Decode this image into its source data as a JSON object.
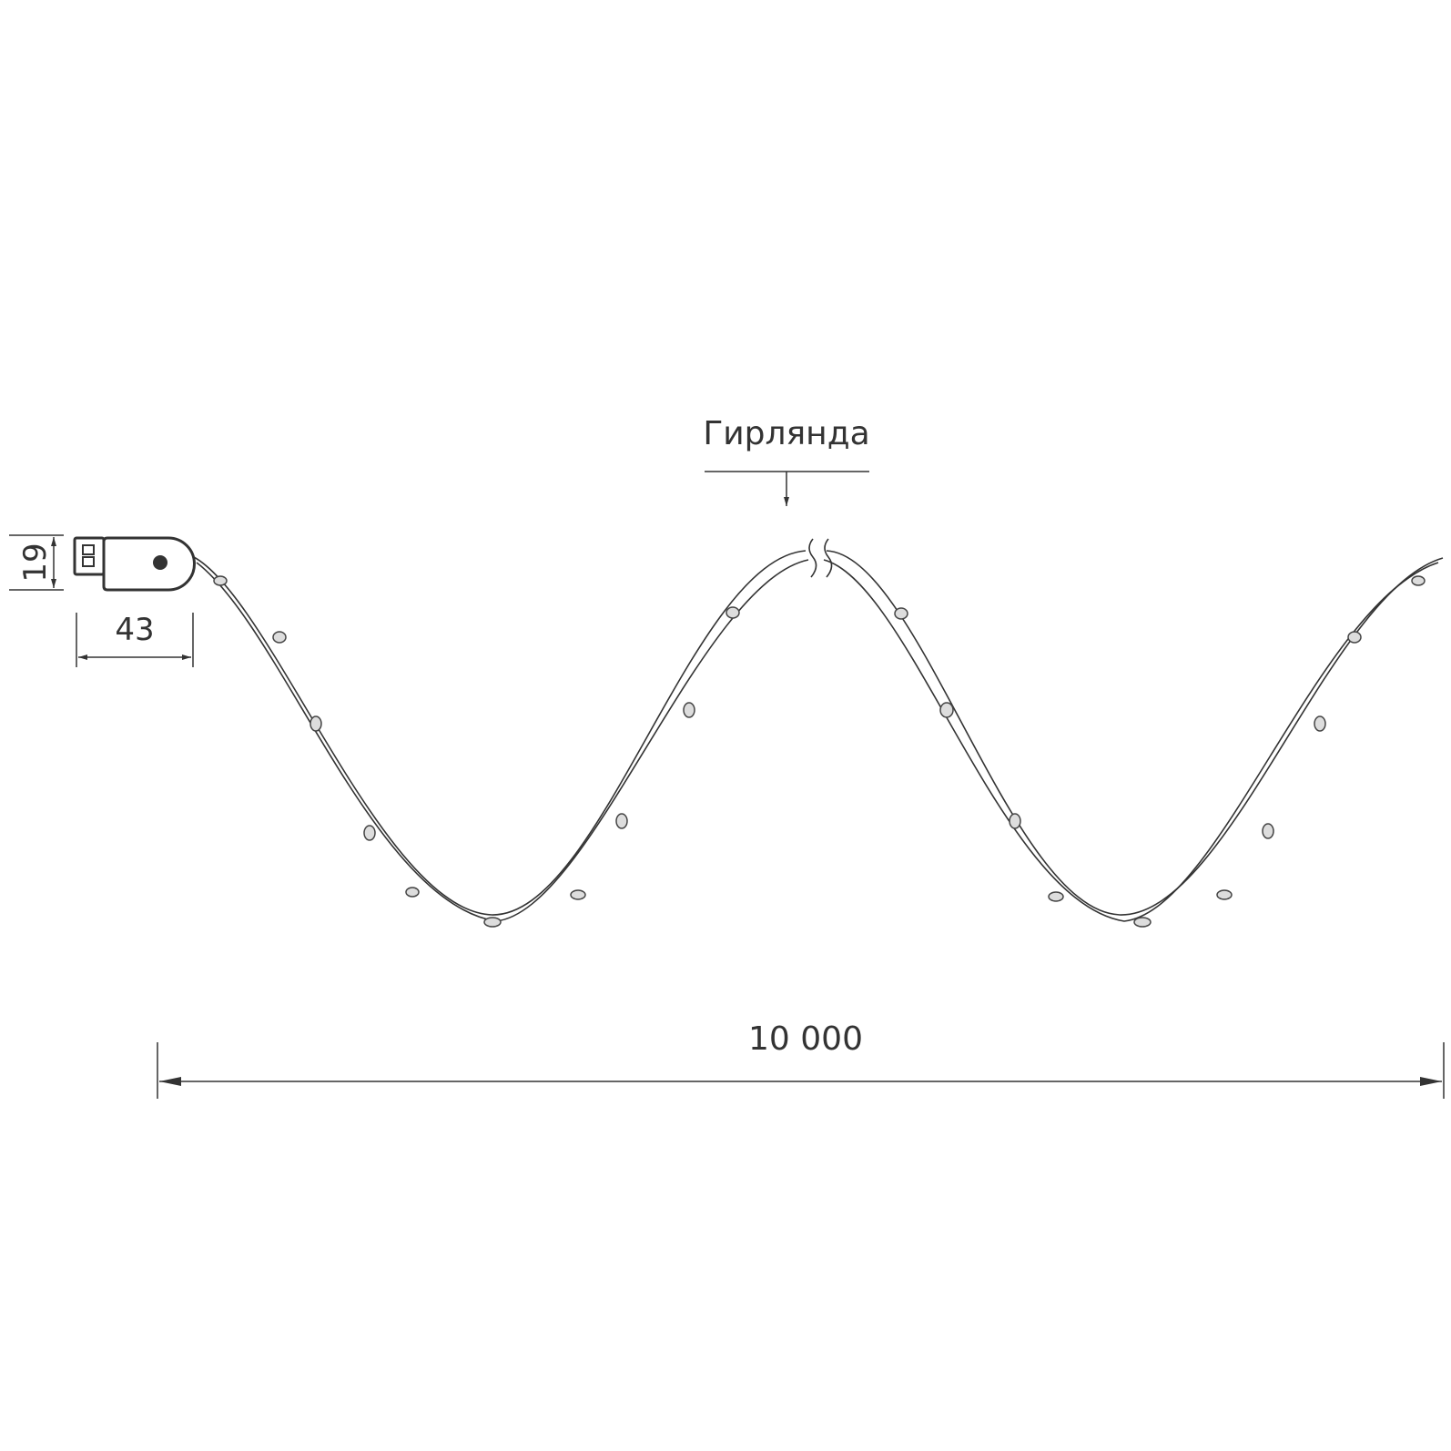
{
  "labels": {
    "garland": "Гирлянда",
    "length": "10 000",
    "usb_width": "43",
    "usb_height": "19"
  },
  "colors": {
    "line": "#333333",
    "background": "#ffffff"
  }
}
